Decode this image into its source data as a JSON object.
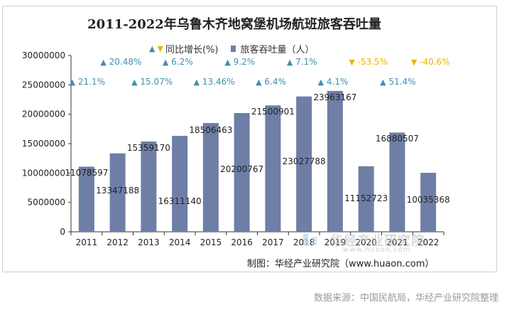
{
  "chart_data": {
    "type": "bar",
    "title": "2011-2022年乌鲁木齐地窝堡机场航班旅客吞吐量",
    "categories": [
      "2011",
      "2012",
      "2013",
      "2014",
      "2015",
      "2016",
      "2017",
      "2018",
      "2019",
      "2020",
      "2021",
      "2022"
    ],
    "series": [
      {
        "name": "旅客吞吐量（人）",
        "values": [
          11078597,
          13347188,
          15359170,
          16311140,
          18506463,
          20200767,
          21500901,
          23027788,
          23963167,
          11152723,
          16880507,
          10035368
        ],
        "labels": [
          "11078597",
          "13347188",
          "15359170",
          "16311140",
          "18506463",
          "20200767",
          "21500901",
          "23027788",
          "23963167",
          "11152723",
          "16880507",
          "10035368"
        ]
      },
      {
        "name": "同比增长(%)",
        "values": [
          21.1,
          20.48,
          15.07,
          6.2,
          13.46,
          9.2,
          6.4,
          7.1,
          4.1,
          -53.5,
          51.4,
          -40.6
        ],
        "labels": [
          "21.1%",
          "20.48%",
          "15.07%",
          "6.2%",
          "13.46%",
          "9.2%",
          "6.4%",
          "7.1%",
          "4.1%",
          "-53.5%",
          "51.4%",
          "-40.6%"
        ]
      }
    ],
    "yticks": [
      "30000000",
      "25000000",
      "20000000",
      "15000000",
      "10000000",
      "5000000",
      "0"
    ],
    "ylim": [
      0,
      30000000
    ],
    "grid": false,
    "legend": "top"
  },
  "colors": {
    "bar": "#6e7ea6",
    "up": "#3f8fb0",
    "down": "#e8b600"
  },
  "legend": {
    "growth": "同比增长(%)",
    "volume": "旅客吞吐量（人）"
  },
  "credit": "制图：华经产业研究院（www.huaon.com）",
  "source": "数据来源：中国民航局，华经产业研究院整理",
  "watermark": {
    "text": "华经产业研究院",
    "url": "www.huaon.com"
  }
}
